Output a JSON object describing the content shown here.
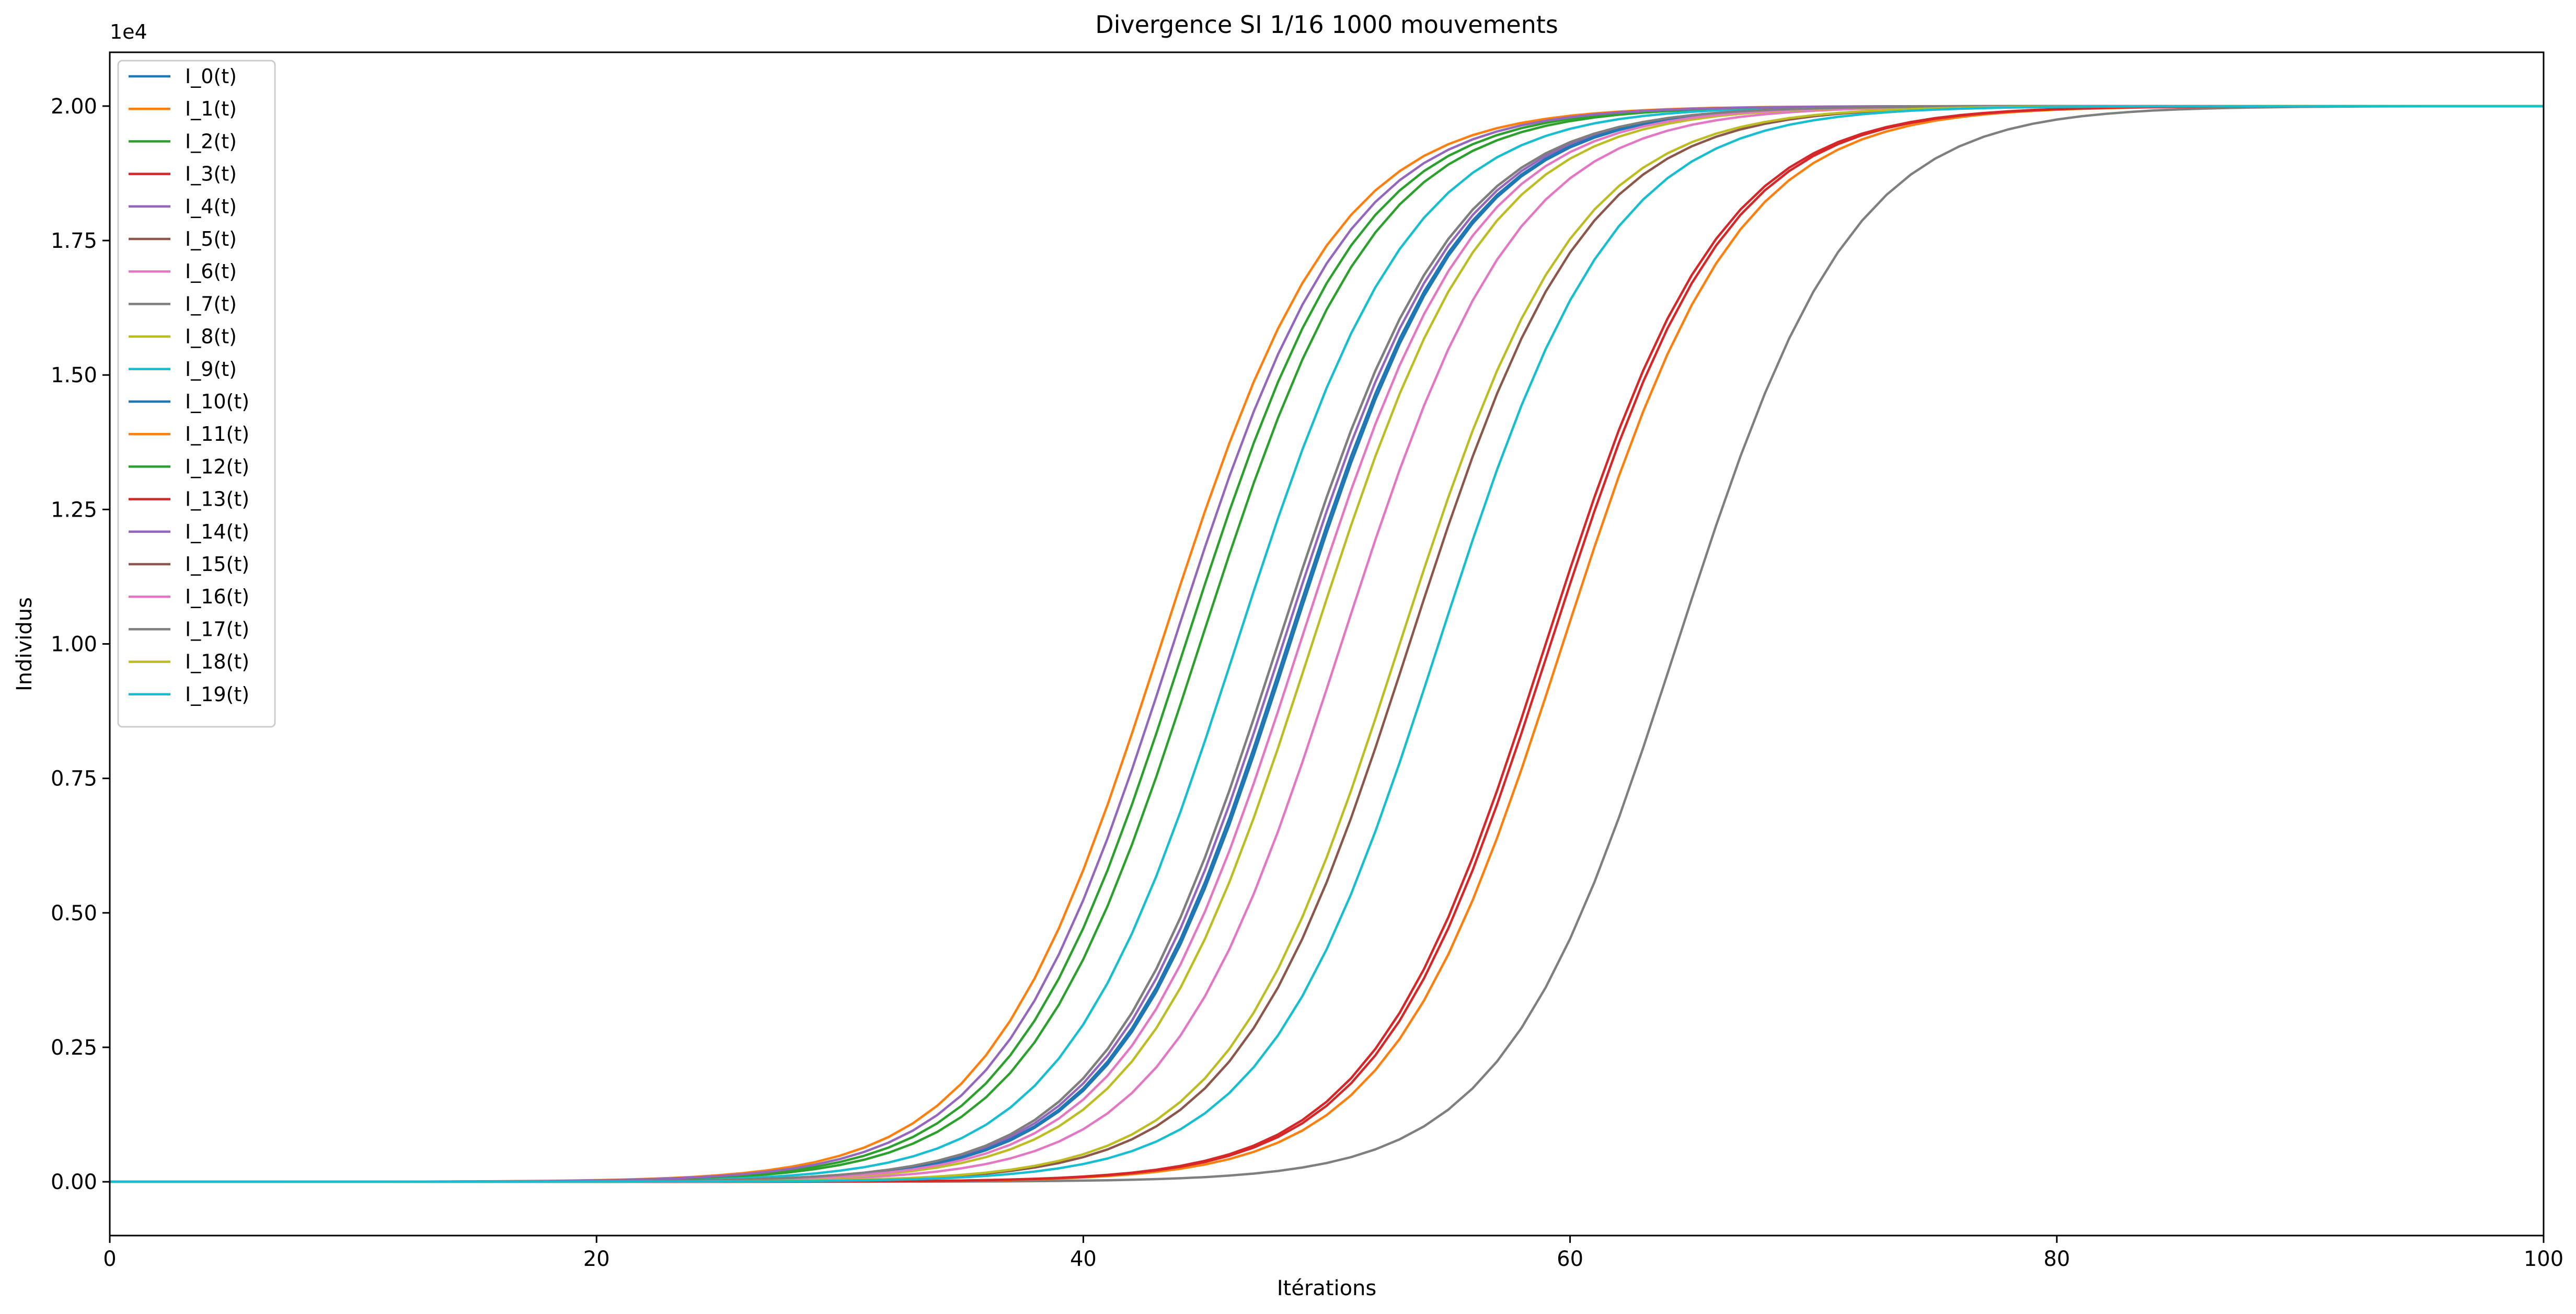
{
  "chart_data": {
    "type": "line",
    "title": "Divergence SI 1/16 1000 mouvements",
    "xlabel": "Itérations",
    "ylabel": "Individus",
    "y_offset_label": "1e4",
    "xlim": [
      0,
      100
    ],
    "ylim": [
      -0.1,
      2.1
    ],
    "x_ticks": [
      0,
      20,
      40,
      60,
      80,
      100
    ],
    "x_tick_labels": [
      "0",
      "20",
      "40",
      "60",
      "80",
      "100"
    ],
    "y_ticks": [
      0,
      0.25,
      0.5,
      0.75,
      1.0,
      1.25,
      1.5,
      1.75,
      2.0
    ],
    "y_tick_labels": [
      "0.00",
      "0.25",
      "0.50",
      "0.75",
      "1.00",
      "1.25",
      "1.50",
      "1.75",
      "2.00"
    ],
    "grid": false,
    "legend_position": "top-left",
    "series": [
      {
        "name": "I_0(t)",
        "color": "#1f77b4",
        "midpoint": 48.5,
        "rate": 0.28
      },
      {
        "name": "I_1(t)",
        "color": "#ff7f0e",
        "midpoint": 43.2,
        "rate": 0.28
      },
      {
        "name": "I_2(t)",
        "color": "#2ca02c",
        "midpoint": 44.8,
        "rate": 0.28
      },
      {
        "name": "I_3(t)",
        "color": "#d62728",
        "midpoint": 59.0,
        "rate": 0.28
      },
      {
        "name": "I_4(t)",
        "color": "#9467bd",
        "midpoint": 48.2,
        "rate": 0.28
      },
      {
        "name": "I_5(t)",
        "color": "#8c564b",
        "midpoint": 53.4,
        "rate": 0.28
      },
      {
        "name": "I_6(t)",
        "color": "#e377c2",
        "midpoint": 50.6,
        "rate": 0.28
      },
      {
        "name": "I_7(t)",
        "color": "#7f7f7f",
        "midpoint": 64.4,
        "rate": 0.28
      },
      {
        "name": "I_8(t)",
        "color": "#bcbd22",
        "midpoint": 49.4,
        "rate": 0.28
      },
      {
        "name": "I_9(t)",
        "color": "#17becf",
        "midpoint": 46.3,
        "rate": 0.28
      },
      {
        "name": "I_10(t)",
        "color": "#1f77b4",
        "midpoint": 48.4,
        "rate": 0.28
      },
      {
        "name": "I_11(t)",
        "color": "#ff7f0e",
        "midpoint": 59.7,
        "rate": 0.28
      },
      {
        "name": "I_12(t)",
        "color": "#2ca02c",
        "midpoint": 44.2,
        "rate": 0.28
      },
      {
        "name": "I_13(t)",
        "color": "#d62728",
        "midpoint": 59.2,
        "rate": 0.28
      },
      {
        "name": "I_14(t)",
        "color": "#9467bd",
        "midpoint": 43.7,
        "rate": 0.28
      },
      {
        "name": "I_15(t)",
        "color": "#8c564b",
        "midpoint": 48.0,
        "rate": 0.28
      },
      {
        "name": "I_16(t)",
        "color": "#e377c2",
        "midpoint": 48.9,
        "rate": 0.28
      },
      {
        "name": "I_17(t)",
        "color": "#7f7f7f",
        "midpoint": 48.0,
        "rate": 0.28
      },
      {
        "name": "I_18(t)",
        "color": "#bcbd22",
        "midpoint": 53.0,
        "rate": 0.28
      },
      {
        "name": "I_19(t)",
        "color": "#17becf",
        "midpoint": 54.6,
        "rate": 0.28
      }
    ],
    "asymptote": 2.0
  }
}
